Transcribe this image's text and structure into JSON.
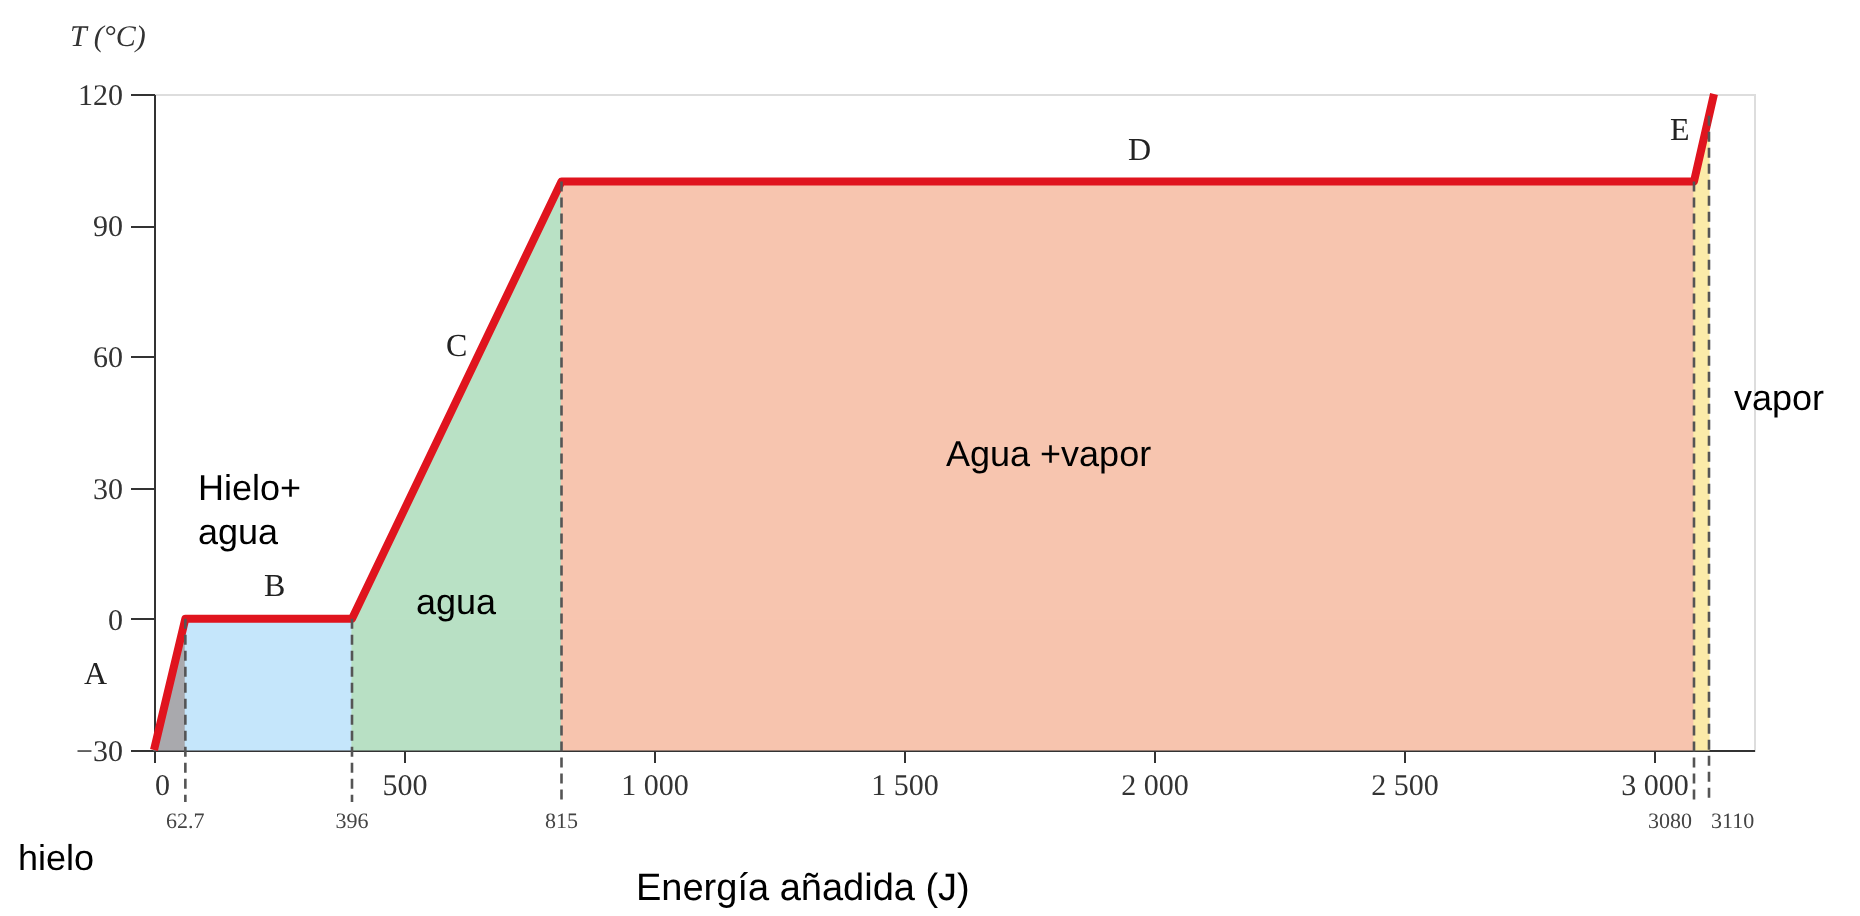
{
  "chart_data": {
    "type": "area",
    "xlabel": "Energía añadida (J)",
    "ylabel": "T (°C)",
    "xlim": [
      0,
      3200
    ],
    "ylim": [
      -30,
      120
    ],
    "xticks": [
      0,
      500,
      {
        "value": 1000,
        "label": "1 000"
      },
      {
        "value": 1500,
        "label": "1 500"
      },
      {
        "value": 2000,
        "label": "2 000"
      },
      {
        "value": 2500,
        "label": "2 500"
      },
      {
        "value": 3000,
        "label": "3 000"
      }
    ],
    "yticks": [
      -30,
      0,
      30,
      60,
      90,
      120
    ],
    "series": [
      {
        "color": "#a9a9ad",
        "x": [
          0,
          62.7
        ],
        "values": [
          -30,
          0
        ]
      },
      {
        "color": "#c5e6fb",
        "x": [
          62.7,
          396
        ],
        "values": [
          -30,
          -30
        ]
      },
      {
        "color": "#b8e0c4",
        "x": [
          396,
          815
        ],
        "values": [
          -30,
          -30
        ]
      },
      {
        "color": "#b9e1c5",
        "x": [
          396,
          815
        ],
        "values": [
          0,
          100
        ]
      },
      {
        "color": "#f7c4ae",
        "x": [
          815,
          3080
        ],
        "values": [
          -30,
          -30
        ]
      },
      {
        "color": "#f7c5af",
        "x": [
          815,
          3080
        ],
        "values": [
          100,
          100
        ]
      },
      {
        "color": "#fbeaa8",
        "x": [
          3080,
          3110
        ],
        "values": [
          -30,
          -30
        ]
      },
      {
        "color": "#fbeba9",
        "x": [
          3080,
          3110
        ],
        "values": [
          100,
          115
        ]
      },
      {
        "type": "line",
        "color": "#e0141e",
        "x": [
          0,
          62.7,
          396,
          815,
          3080,
          3120
        ],
        "values": [
          -30,
          0,
          0,
          100,
          100,
          120
        ]
      }
    ],
    "ref_lines": [
      {
        "axis": "x",
        "value": 62.7,
        "label": "62.7",
        "color": "#555555",
        "line_style": "dashed"
      },
      {
        "axis": "x",
        "value": 396,
        "label": "396",
        "color": "#555555",
        "line_style": "dashed"
      },
      {
        "axis": "x",
        "value": 815,
        "label": "815",
        "color": "#555555",
        "line_style": "dashed"
      },
      {
        "axis": "x",
        "value": 3080,
        "label": "3080",
        "color": "#555555",
        "line_style": "dashed"
      },
      {
        "axis": "x",
        "value": 3110,
        "label": "3110",
        "color": "#555555",
        "line_style": "dashed"
      }
    ],
    "annotations": [
      "A",
      "B",
      "C",
      "D",
      "E",
      "Hielo+\nagua",
      "agua",
      "Agua +vapor",
      "hielo",
      "vapor"
    ],
    "grid": false,
    "marker": "none",
    "line_style": "solid"
  }
}
